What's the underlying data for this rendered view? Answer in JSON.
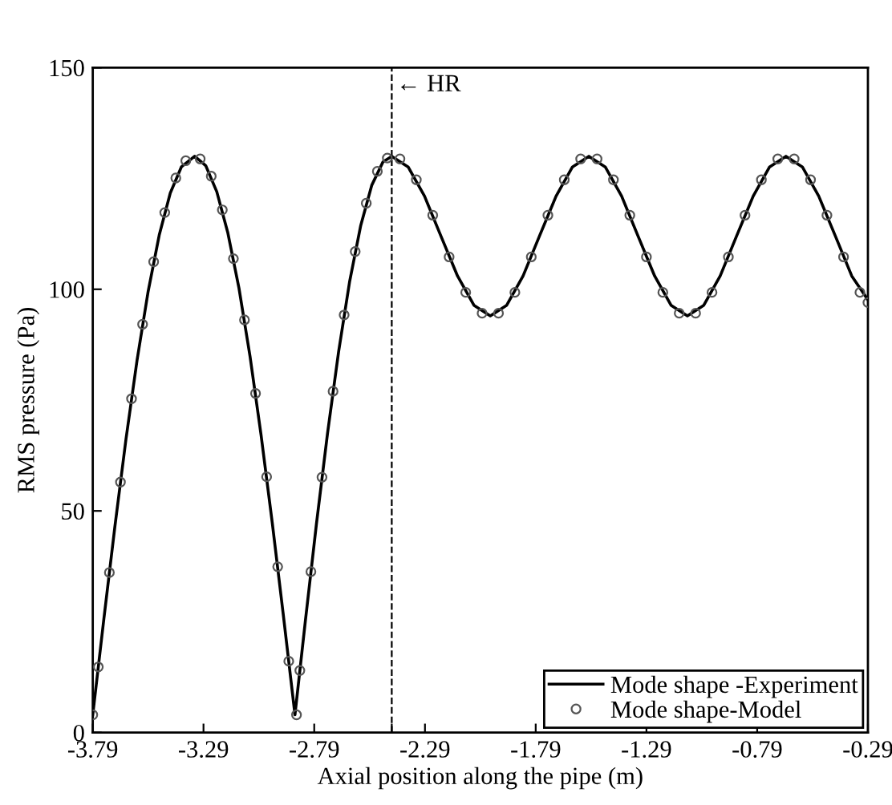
{
  "chart_data": {
    "type": "line",
    "xlabel": "Axial position along the pipe (m)",
    "ylabel": "RMS pressure (Pa)",
    "xlim": [
      -3.79,
      -0.29
    ],
    "xticks": [
      -3.79,
      -3.29,
      -2.79,
      -2.29,
      -1.79,
      -1.29,
      -0.79,
      -0.29,
      {
        "value": -2.44,
        "label": null
      }
    ],
    "ylim": [
      0,
      150
    ],
    "yticks": [
      0,
      50,
      100,
      150
    ],
    "grid": false,
    "legend": "bottom right",
    "ref_lines": [
      {
        "axis": "x",
        "value": -2.44,
        "label": null,
        "color": "#000000",
        "line_style": "dashed"
      }
    ],
    "annotations": [
      {
        "text": "← HR",
        "x": -2.44,
        "y": 146
      }
    ],
    "series": [
      {
        "name": "Mode shape -Experiment",
        "type": "line",
        "color": "#000000",
        "marker": "none",
        "line_style": "solid",
        "x": [
          -3.79,
          -3.74,
          -3.69,
          -3.64,
          -3.59,
          -3.54,
          -3.49,
          -3.44,
          -3.39,
          -3.33,
          -3.28,
          -3.23,
          -3.18,
          -3.13,
          -3.08,
          -3.03,
          -2.98,
          -2.93,
          -2.877,
          -2.83,
          -2.78,
          -2.73,
          -2.68,
          -2.63,
          -2.58,
          -2.53,
          -2.48,
          -2.44,
          -2.366,
          -2.292,
          -2.218,
          -2.143,
          -2.069,
          -1.995,
          -1.921,
          -1.847,
          -1.773,
          -1.698,
          -1.624,
          -1.55,
          -1.476,
          -1.402,
          -1.328,
          -1.253,
          -1.179,
          -1.105,
          -1.031,
          -0.957,
          -0.883,
          -0.808,
          -0.734,
          -0.66,
          -0.586,
          -0.512,
          -0.437,
          -0.363,
          -0.29
        ],
        "values": [
          4,
          25.6,
          46.5,
          66.2,
          84,
          99.5,
          112.2,
          121.7,
          127.6,
          130,
          127.9,
          122,
          112.7,
          100.3,
          84.9,
          67.1,
          47.5,
          26.7,
          4,
          25.2,
          47.1,
          67.5,
          85.9,
          101.8,
          114.4,
          123.5,
          128.7,
          130,
          127.6,
          121,
          112,
          103,
          96.4,
          94,
          96.4,
          103,
          112,
          121,
          127.6,
          130,
          127.6,
          121,
          112,
          103,
          96.4,
          94,
          96.4,
          103,
          112,
          121,
          127.6,
          130,
          127.6,
          121,
          112,
          103,
          97.6
        ]
      },
      {
        "name": "Mode shape-Model",
        "type": "scatter",
        "color": "#555555",
        "marker": "circle",
        "x": [
          -3.79,
          -3.765,
          -3.715,
          -3.665,
          -3.615,
          -3.565,
          -3.515,
          -3.465,
          -3.415,
          -3.37,
          -3.305,
          -3.255,
          -3.205,
          -3.155,
          -3.105,
          -3.055,
          -3.005,
          -2.955,
          -2.905,
          -2.87,
          -2.855,
          -2.805,
          -2.755,
          -2.705,
          -2.655,
          -2.605,
          -2.555,
          -2.505,
          -2.46,
          -2.403,
          -2.329,
          -2.255,
          -2.181,
          -2.106,
          -2.032,
          -1.958,
          -1.884,
          -1.81,
          -1.735,
          -1.661,
          -1.587,
          -1.513,
          -1.439,
          -1.365,
          -1.29,
          -1.216,
          -1.142,
          -1.068,
          -0.994,
          -0.92,
          -0.845,
          -0.771,
          -0.697,
          -0.623,
          -0.549,
          -0.475,
          -0.4,
          -0.326,
          -0.29
        ],
        "values": [
          4,
          14.8,
          36.1,
          56.5,
          75.3,
          92.1,
          106.2,
          117.3,
          125.1,
          129,
          129.4,
          125.5,
          117.9,
          106.9,
          93.1,
          76.5,
          57.7,
          37.4,
          16.1,
          4,
          14,
          36.3,
          57.6,
          77,
          94.2,
          108.5,
          119.4,
          126.6,
          129.6,
          129.4,
          124.7,
          116.7,
          107.3,
          99.3,
          94.6,
          94.6,
          99.3,
          107.3,
          116.7,
          124.7,
          129.4,
          129.4,
          124.7,
          116.7,
          107.3,
          99.3,
          94.6,
          94.6,
          99.3,
          107.3,
          116.7,
          124.7,
          129.4,
          129.4,
          124.7,
          116.7,
          107.3,
          99.3,
          97
        ]
      }
    ]
  }
}
